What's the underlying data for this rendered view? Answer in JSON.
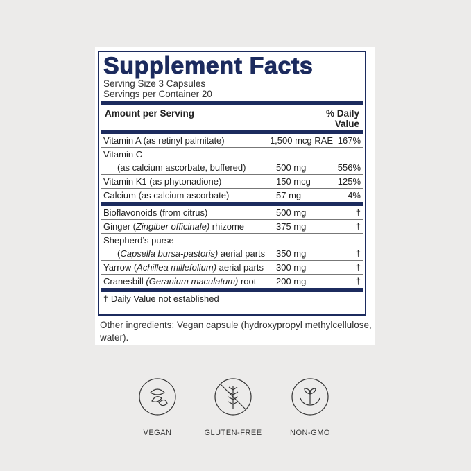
{
  "facts": {
    "title": "Supplement Facts",
    "serving_size": "Serving Size 3 Capsules",
    "servings_per_container": "Servings per Container 20",
    "amount_header": "Amount per Serving",
    "dv_header_1": "% Daily",
    "dv_header_2": "Value",
    "vitamins": [
      {
        "name": "Vitamin A (as retinyl palmitate)",
        "amount": "1,500 mcg RAE",
        "dv": "167%"
      },
      {
        "name": "Vitamin C",
        "sub": "(as calcium ascorbate, buffered)",
        "amount": "500 mg",
        "dv": "556%"
      },
      {
        "name": "Vitamin K1 (as phytonadione)",
        "amount": "150 mcg",
        "dv": "125%"
      },
      {
        "name": "Calcium (as calcium ascorbate)",
        "amount": "57 mg",
        "dv": "4%"
      }
    ],
    "botanicals": [
      {
        "name": "Bioflavonoids (from citrus)",
        "amount": "500 mg",
        "dv": "†"
      },
      {
        "pre": "Ginger (",
        "latin": "Zingiber officinale)",
        "post": " rhizome",
        "amount": "375 mg",
        "dv": "†"
      },
      {
        "name": "Shepherd’s purse",
        "pre": "(",
        "latin": "Capsella bursa-pastoris)",
        "post": " aerial parts",
        "amount": "350 mg",
        "dv": "†"
      },
      {
        "pre": "Yarrow (",
        "latin": "Achillea millefolium)",
        "post": " aerial parts",
        "amount": "300 mg",
        "dv": "†"
      },
      {
        "pre": "Cranesbill ",
        "latin": "(Geranium maculatum)",
        "post": " root",
        "amount": "200 mg",
        "dv": "†"
      }
    ],
    "footnote": "†  Daily Value not established",
    "other_ingredients": "Other ingredients: Vegan capsule (hydroxypropyl methylcellulose, water)."
  },
  "badges": [
    {
      "label": "VEGAN",
      "icon": "leaves-icon"
    },
    {
      "label": "GLUTEN-FREE",
      "icon": "crossed-wheat-icon"
    },
    {
      "label": "NON-GMO",
      "icon": "hands-plant-icon"
    }
  ],
  "colors": {
    "navy": "#1c2b5e",
    "background": "#ecebea"
  }
}
